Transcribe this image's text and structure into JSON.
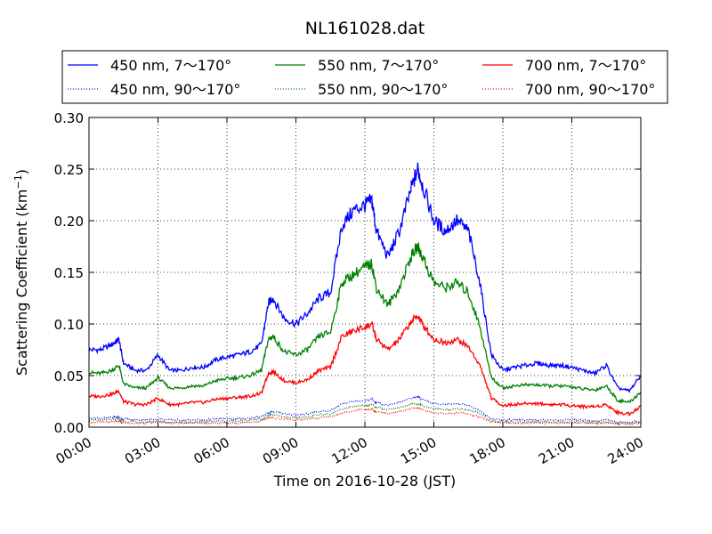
{
  "chart_data": {
    "type": "line",
    "title": "NL161028.dat",
    "xlabel": "Time on 2016-10-28 (JST)",
    "ylabel": "Scattering Coefficient (km",
    "ylabel_sup": "−1",
    "ylabel_close": ")",
    "xlim": [
      "00:00",
      "24:00"
    ],
    "ylim": [
      0.0,
      0.3
    ],
    "grid": true,
    "legend_position": "top (above plot)",
    "x_ticks": [
      "00:00",
      "03:00",
      "06:00",
      "09:00",
      "12:00",
      "15:00",
      "18:00",
      "21:00",
      "24:00"
    ],
    "y_ticks": [
      "0.00",
      "0.05",
      "0.10",
      "0.15",
      "0.20",
      "0.25",
      "0.30"
    ],
    "x_tick_hours": [
      0,
      3,
      6,
      9,
      12,
      15,
      18,
      21,
      24
    ],
    "y_tick_values": [
      0.0,
      0.05,
      0.1,
      0.15,
      0.2,
      0.25,
      0.3
    ],
    "x_hours": [
      0,
      0.5,
      1,
      1.3,
      1.5,
      2,
      2.5,
      3,
      3.5,
      4,
      4.5,
      5,
      5.5,
      6,
      6.5,
      7,
      7.5,
      7.8,
      8,
      8.5,
      9,
      9.5,
      10,
      10.5,
      11,
      11.5,
      12,
      12.3,
      12.5,
      13,
      13.5,
      14,
      14.3,
      14.5,
      15,
      15.5,
      16,
      16.5,
      17,
      17.5,
      18,
      18.5,
      19,
      19.5,
      20,
      20.5,
      21,
      21.5,
      22,
      22.5,
      23,
      23.5,
      24
    ],
    "series": [
      {
        "name": "450 nm, 7～170°",
        "color": "#0000ff",
        "style": "solid",
        "values": [
          0.075,
          0.075,
          0.08,
          0.085,
          0.062,
          0.055,
          0.055,
          0.07,
          0.055,
          0.055,
          0.058,
          0.058,
          0.065,
          0.068,
          0.07,
          0.073,
          0.08,
          0.12,
          0.125,
          0.105,
          0.1,
          0.11,
          0.125,
          0.13,
          0.195,
          0.21,
          0.215,
          0.22,
          0.19,
          0.165,
          0.19,
          0.23,
          0.25,
          0.235,
          0.2,
          0.19,
          0.2,
          0.19,
          0.14,
          0.07,
          0.055,
          0.058,
          0.06,
          0.062,
          0.06,
          0.06,
          0.058,
          0.055,
          0.052,
          0.06,
          0.038,
          0.035,
          0.05
        ]
      },
      {
        "name": "550 nm, 7～170°",
        "color": "#008000",
        "style": "solid",
        "values": [
          0.053,
          0.052,
          0.055,
          0.06,
          0.042,
          0.038,
          0.038,
          0.048,
          0.038,
          0.038,
          0.04,
          0.04,
          0.045,
          0.047,
          0.048,
          0.05,
          0.055,
          0.085,
          0.088,
          0.073,
          0.07,
          0.075,
          0.088,
          0.092,
          0.14,
          0.148,
          0.155,
          0.158,
          0.135,
          0.118,
          0.135,
          0.165,
          0.175,
          0.165,
          0.14,
          0.135,
          0.14,
          0.13,
          0.098,
          0.048,
          0.038,
          0.04,
          0.041,
          0.041,
          0.04,
          0.04,
          0.039,
          0.037,
          0.036,
          0.04,
          0.026,
          0.024,
          0.034
        ]
      },
      {
        "name": "700 nm, 7～170°",
        "color": "#ff0000",
        "style": "solid",
        "values": [
          0.03,
          0.03,
          0.032,
          0.035,
          0.025,
          0.022,
          0.022,
          0.028,
          0.022,
          0.022,
          0.024,
          0.024,
          0.027,
          0.028,
          0.029,
          0.03,
          0.033,
          0.052,
          0.054,
          0.045,
          0.043,
          0.046,
          0.055,
          0.058,
          0.088,
          0.093,
          0.097,
          0.1,
          0.085,
          0.075,
          0.085,
          0.102,
          0.108,
          0.1,
          0.085,
          0.082,
          0.085,
          0.078,
          0.06,
          0.028,
          0.021,
          0.022,
          0.023,
          0.023,
          0.022,
          0.022,
          0.021,
          0.02,
          0.02,
          0.022,
          0.014,
          0.013,
          0.02
        ]
      },
      {
        "name": "450 nm, 90～170°",
        "color": "#0000ff",
        "style": "dotted",
        "values": [
          0.009,
          0.009,
          0.009,
          0.01,
          0.008,
          0.007,
          0.007,
          0.008,
          0.007,
          0.007,
          0.007,
          0.007,
          0.008,
          0.008,
          0.008,
          0.009,
          0.01,
          0.014,
          0.015,
          0.013,
          0.012,
          0.013,
          0.015,
          0.016,
          0.023,
          0.025,
          0.026,
          0.027,
          0.024,
          0.021,
          0.024,
          0.028,
          0.029,
          0.027,
          0.023,
          0.022,
          0.023,
          0.021,
          0.016,
          0.008,
          0.007,
          0.007,
          0.007,
          0.007,
          0.007,
          0.007,
          0.007,
          0.007,
          0.006,
          0.007,
          0.005,
          0.005,
          0.006
        ]
      },
      {
        "name": "550 nm, 90～170°",
        "color": "#008000",
        "style": "dotted",
        "values": [
          0.007,
          0.007,
          0.007,
          0.008,
          0.006,
          0.005,
          0.005,
          0.006,
          0.005,
          0.005,
          0.005,
          0.005,
          0.006,
          0.006,
          0.006,
          0.007,
          0.008,
          0.011,
          0.012,
          0.01,
          0.009,
          0.01,
          0.012,
          0.013,
          0.018,
          0.02,
          0.021,
          0.022,
          0.019,
          0.017,
          0.019,
          0.022,
          0.023,
          0.021,
          0.018,
          0.017,
          0.018,
          0.017,
          0.013,
          0.006,
          0.005,
          0.005,
          0.005,
          0.005,
          0.005,
          0.005,
          0.005,
          0.005,
          0.005,
          0.005,
          0.004,
          0.004,
          0.005
        ]
      },
      {
        "name": "700 nm, 90～170°",
        "color": "#ff0000",
        "style": "dotted",
        "values": [
          0.005,
          0.005,
          0.005,
          0.006,
          0.004,
          0.004,
          0.004,
          0.005,
          0.004,
          0.004,
          0.004,
          0.004,
          0.004,
          0.004,
          0.004,
          0.005,
          0.006,
          0.009,
          0.009,
          0.008,
          0.007,
          0.008,
          0.009,
          0.01,
          0.014,
          0.016,
          0.017,
          0.018,
          0.015,
          0.013,
          0.015,
          0.018,
          0.019,
          0.017,
          0.014,
          0.013,
          0.014,
          0.013,
          0.01,
          0.005,
          0.004,
          0.004,
          0.004,
          0.004,
          0.004,
          0.004,
          0.004,
          0.004,
          0.004,
          0.004,
          0.003,
          0.003,
          0.004
        ]
      }
    ],
    "legend_order": [
      0,
      1,
      2,
      3,
      4,
      5
    ]
  }
}
